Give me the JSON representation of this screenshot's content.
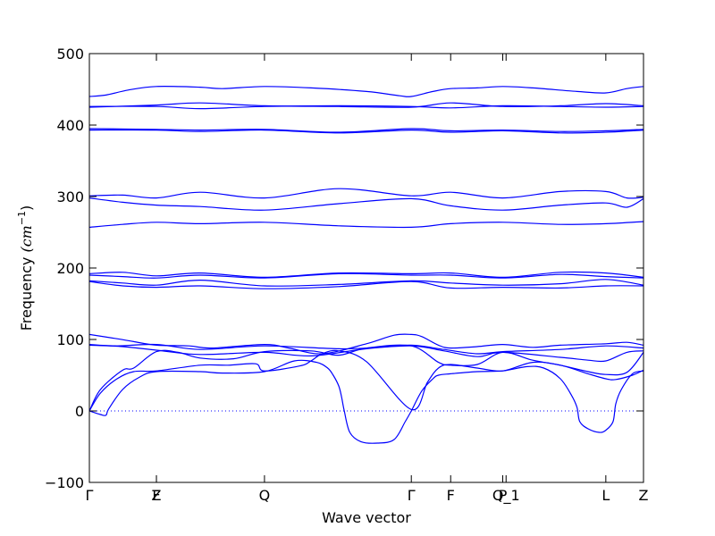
{
  "chart_data": {
    "type": "line",
    "xlabel": "Wave vector",
    "ylabel": "Frequency (cm⁻¹)",
    "ylabel_prefix": "Frequency ",
    "ylabel_units": "(cm",
    "ylabel_exp": "−1",
    "ylabel_close": ")",
    "ylim": [
      -100,
      500
    ],
    "y_ticks": [
      -100,
      0,
      100,
      200,
      300,
      400,
      500
    ],
    "xlim": [
      0,
      1
    ],
    "grid": false,
    "zero_line": "dotted",
    "line_color": "#0000ff",
    "high_points": [
      {
        "label": "Γ",
        "x": 0.0
      },
      {
        "label": "Z",
        "x": 0.121
      },
      {
        "label": "F",
        "x": 0.121
      },
      {
        "label": "Q",
        "x": 0.316
      },
      {
        "label": "Γ",
        "x": 0.581
      },
      {
        "label": "F",
        "x": 0.652
      },
      {
        "label": "P",
        "x": 0.746
      },
      {
        "label": "Q_1",
        "x": 0.752
      },
      {
        "label": "L",
        "x": 0.932
      },
      {
        "label": "Z",
        "x": 1.0
      }
    ],
    "series": [
      {
        "values": [
          [
            0,
            440
          ],
          [
            0.03,
            442
          ],
          [
            0.07,
            449
          ],
          [
            0.121,
            454
          ],
          [
            0.2,
            453
          ],
          [
            0.24,
            451
          ],
          [
            0.316,
            454
          ],
          [
            0.4,
            452
          ],
          [
            0.5,
            447
          ],
          [
            0.56,
            441
          ],
          [
            0.581,
            440
          ],
          [
            0.62,
            447
          ],
          [
            0.652,
            451
          ],
          [
            0.7,
            452
          ],
          [
            0.746,
            454
          ],
          [
            0.8,
            452
          ],
          [
            0.88,
            447
          ],
          [
            0.932,
            445
          ],
          [
            0.97,
            451
          ],
          [
            1.0,
            454
          ]
        ]
      },
      {
        "values": [
          [
            0,
            425
          ],
          [
            0.121,
            428
          ],
          [
            0.2,
            431
          ],
          [
            0.316,
            427
          ],
          [
            0.45,
            426
          ],
          [
            0.581,
            425
          ],
          [
            0.652,
            431
          ],
          [
            0.746,
            426
          ],
          [
            0.85,
            427
          ],
          [
            0.932,
            430
          ],
          [
            1.0,
            427
          ]
        ]
      },
      {
        "values": [
          [
            0,
            426
          ],
          [
            0.121,
            426
          ],
          [
            0.2,
            423
          ],
          [
            0.316,
            426
          ],
          [
            0.45,
            427
          ],
          [
            0.581,
            426
          ],
          [
            0.652,
            424
          ],
          [
            0.746,
            427
          ],
          [
            0.85,
            426
          ],
          [
            0.932,
            425
          ],
          [
            1.0,
            426
          ]
        ]
      },
      {
        "values": [
          [
            0,
            395
          ],
          [
            0.121,
            394
          ],
          [
            0.2,
            393
          ],
          [
            0.316,
            394
          ],
          [
            0.45,
            390
          ],
          [
            0.581,
            395
          ],
          [
            0.652,
            392
          ],
          [
            0.746,
            393
          ],
          [
            0.85,
            391
          ],
          [
            0.932,
            392
          ],
          [
            1.0,
            394
          ]
        ]
      },
      {
        "values": [
          [
            0,
            393
          ],
          [
            0.121,
            393
          ],
          [
            0.2,
            391
          ],
          [
            0.316,
            393
          ],
          [
            0.45,
            389
          ],
          [
            0.581,
            393
          ],
          [
            0.652,
            390
          ],
          [
            0.746,
            392
          ],
          [
            0.85,
            389
          ],
          [
            0.932,
            390
          ],
          [
            1.0,
            393
          ]
        ]
      },
      {
        "values": [
          [
            0,
            301
          ],
          [
            0.06,
            302
          ],
          [
            0.121,
            298
          ],
          [
            0.2,
            306
          ],
          [
            0.316,
            298
          ],
          [
            0.45,
            311
          ],
          [
            0.581,
            301
          ],
          [
            0.652,
            306
          ],
          [
            0.746,
            298
          ],
          [
            0.85,
            307
          ],
          [
            0.932,
            307
          ],
          [
            0.97,
            298
          ],
          [
            1.0,
            299
          ]
        ]
      },
      {
        "values": [
          [
            0,
            298
          ],
          [
            0.06,
            292
          ],
          [
            0.121,
            288
          ],
          [
            0.2,
            286
          ],
          [
            0.316,
            281
          ],
          [
            0.45,
            290
          ],
          [
            0.581,
            297
          ],
          [
            0.652,
            287
          ],
          [
            0.746,
            281
          ],
          [
            0.85,
            288
          ],
          [
            0.932,
            291
          ],
          [
            0.97,
            285
          ],
          [
            1.0,
            297
          ]
        ]
      },
      {
        "values": [
          [
            0,
            257
          ],
          [
            0.06,
            261
          ],
          [
            0.121,
            264
          ],
          [
            0.2,
            262
          ],
          [
            0.316,
            264
          ],
          [
            0.45,
            259
          ],
          [
            0.581,
            257
          ],
          [
            0.652,
            262
          ],
          [
            0.746,
            264
          ],
          [
            0.85,
            261
          ],
          [
            0.932,
            262
          ],
          [
            1.0,
            265
          ]
        ]
      },
      {
        "values": [
          [
            0,
            192
          ],
          [
            0.06,
            194
          ],
          [
            0.121,
            189
          ],
          [
            0.2,
            193
          ],
          [
            0.316,
            187
          ],
          [
            0.45,
            193
          ],
          [
            0.581,
            192
          ],
          [
            0.652,
            193
          ],
          [
            0.746,
            187
          ],
          [
            0.85,
            194
          ],
          [
            0.932,
            193
          ],
          [
            1.0,
            187
          ]
        ]
      },
      {
        "values": [
          [
            0,
            190
          ],
          [
            0.06,
            188
          ],
          [
            0.121,
            186
          ],
          [
            0.2,
            190
          ],
          [
            0.316,
            186
          ],
          [
            0.45,
            192
          ],
          [
            0.581,
            190
          ],
          [
            0.652,
            190
          ],
          [
            0.746,
            186
          ],
          [
            0.85,
            191
          ],
          [
            0.932,
            188
          ],
          [
            1.0,
            186
          ]
        ]
      },
      {
        "values": [
          [
            0,
            182
          ],
          [
            0.06,
            179
          ],
          [
            0.121,
            176
          ],
          [
            0.2,
            183
          ],
          [
            0.316,
            175
          ],
          [
            0.45,
            177
          ],
          [
            0.581,
            182
          ],
          [
            0.652,
            179
          ],
          [
            0.746,
            176
          ],
          [
            0.85,
            178
          ],
          [
            0.932,
            184
          ],
          [
            1.0,
            176
          ]
        ]
      },
      {
        "values": [
          [
            0,
            181
          ],
          [
            0.06,
            175
          ],
          [
            0.121,
            173
          ],
          [
            0.2,
            175
          ],
          [
            0.316,
            171
          ],
          [
            0.45,
            174
          ],
          [
            0.581,
            181
          ],
          [
            0.652,
            172
          ],
          [
            0.746,
            173
          ],
          [
            0.85,
            172
          ],
          [
            0.932,
            175
          ],
          [
            1.0,
            175
          ]
        ]
      },
      {
        "values": [
          [
            0,
            107
          ],
          [
            0.05,
            101
          ],
          [
            0.08,
            97
          ],
          [
            0.121,
            92
          ],
          [
            0.18,
            91
          ],
          [
            0.22,
            88
          ],
          [
            0.316,
            93
          ],
          [
            0.36,
            88
          ],
          [
            0.42,
            80
          ],
          [
            0.5,
            94
          ],
          [
            0.55,
            106
          ],
          [
            0.581,
            107
          ],
          [
            0.6,
            104
          ],
          [
            0.63,
            92
          ],
          [
            0.652,
            88
          ],
          [
            0.7,
            90
          ],
          [
            0.746,
            93
          ],
          [
            0.8,
            89
          ],
          [
            0.85,
            92
          ],
          [
            0.932,
            94
          ],
          [
            0.97,
            96
          ],
          [
            1.0,
            92
          ]
        ]
      },
      {
        "values": [
          [
            0,
            93
          ],
          [
            0.05,
            91
          ],
          [
            0.121,
            93
          ],
          [
            0.2,
            86
          ],
          [
            0.316,
            91
          ],
          [
            0.45,
            87
          ],
          [
            0.52,
            89
          ],
          [
            0.581,
            92
          ],
          [
            0.64,
            86
          ],
          [
            0.7,
            80
          ],
          [
            0.746,
            83
          ],
          [
            0.85,
            86
          ],
          [
            0.932,
            91
          ],
          [
            1.0,
            88
          ]
        ]
      },
      {
        "values": [
          [
            0,
            92
          ],
          [
            0.06,
            90
          ],
          [
            0.121,
            85
          ],
          [
            0.2,
            79
          ],
          [
            0.316,
            82
          ],
          [
            0.4,
            77
          ],
          [
            0.5,
            87
          ],
          [
            0.581,
            91
          ],
          [
            0.64,
            84
          ],
          [
            0.7,
            76
          ],
          [
            0.746,
            82
          ],
          [
            0.85,
            75
          ],
          [
            0.9,
            71
          ],
          [
            0.932,
            70
          ],
          [
            0.97,
            82
          ],
          [
            1.0,
            84
          ]
        ]
      },
      {
        "values": [
          [
            0,
            0
          ],
          [
            0.02,
            30
          ],
          [
            0.06,
            57
          ],
          [
            0.08,
            60
          ],
          [
            0.121,
            83
          ],
          [
            0.16,
            82
          ],
          [
            0.2,
            74
          ],
          [
            0.26,
            73
          ],
          [
            0.316,
            83
          ],
          [
            0.4,
            84
          ],
          [
            0.45,
            78
          ],
          [
            0.5,
            88
          ],
          [
            0.581,
            91
          ],
          [
            0.63,
            68
          ],
          [
            0.652,
            64
          ],
          [
            0.7,
            65
          ],
          [
            0.746,
            82
          ],
          [
            0.8,
            71
          ],
          [
            0.85,
            64
          ],
          [
            0.9,
            55
          ],
          [
            0.932,
            51
          ],
          [
            0.97,
            54
          ],
          [
            1.0,
            82
          ]
        ]
      },
      {
        "values": [
          [
            0,
            0
          ],
          [
            0.02,
            25
          ],
          [
            0.05,
            45
          ],
          [
            0.08,
            55
          ],
          [
            0.121,
            56
          ],
          [
            0.2,
            64
          ],
          [
            0.25,
            64
          ],
          [
            0.3,
            66
          ],
          [
            0.316,
            56
          ],
          [
            0.38,
            63
          ],
          [
            0.4,
            70
          ],
          [
            0.42,
            80
          ],
          [
            0.45,
            84
          ],
          [
            0.5,
            69
          ],
          [
            0.581,
            2
          ],
          [
            0.61,
            40
          ],
          [
            0.63,
            60
          ],
          [
            0.652,
            65
          ],
          [
            0.7,
            60
          ],
          [
            0.746,
            56
          ],
          [
            0.8,
            68
          ],
          [
            0.85,
            64
          ],
          [
            0.9,
            52
          ],
          [
            0.932,
            45
          ],
          [
            0.95,
            44
          ],
          [
            0.98,
            50
          ],
          [
            1.0,
            57
          ]
        ]
      },
      {
        "values": [
          [
            0,
            0
          ],
          [
            0.02,
            -5
          ],
          [
            0.03,
            -6
          ],
          [
            0.035,
            3
          ],
          [
            0.06,
            30
          ],
          [
            0.09,
            47
          ],
          [
            0.121,
            55
          ],
          [
            0.2,
            55
          ],
          [
            0.24,
            53
          ],
          [
            0.316,
            55
          ],
          [
            0.37,
            70
          ],
          [
            0.41,
            68
          ],
          [
            0.43,
            60
          ],
          [
            0.44,
            50
          ],
          [
            0.45,
            35
          ],
          [
            0.455,
            20
          ],
          [
            0.46,
            0
          ],
          [
            0.47,
            -30
          ],
          [
            0.49,
            -43
          ],
          [
            0.52,
            -45
          ],
          [
            0.55,
            -40
          ],
          [
            0.57,
            -15
          ],
          [
            0.581,
            0
          ],
          [
            0.6,
            28
          ],
          [
            0.62,
            45
          ],
          [
            0.63,
            50
          ],
          [
            0.652,
            52
          ],
          [
            0.7,
            55
          ],
          [
            0.746,
            56
          ],
          [
            0.79,
            62
          ],
          [
            0.82,
            60
          ],
          [
            0.85,
            45
          ],
          [
            0.87,
            22
          ],
          [
            0.88,
            5
          ],
          [
            0.885,
            -15
          ],
          [
            0.9,
            -25
          ],
          [
            0.92,
            -30
          ],
          [
            0.932,
            -27
          ],
          [
            0.945,
            -15
          ],
          [
            0.95,
            10
          ],
          [
            0.96,
            30
          ],
          [
            0.98,
            52
          ],
          [
            1.0,
            56
          ]
        ]
      }
    ]
  }
}
